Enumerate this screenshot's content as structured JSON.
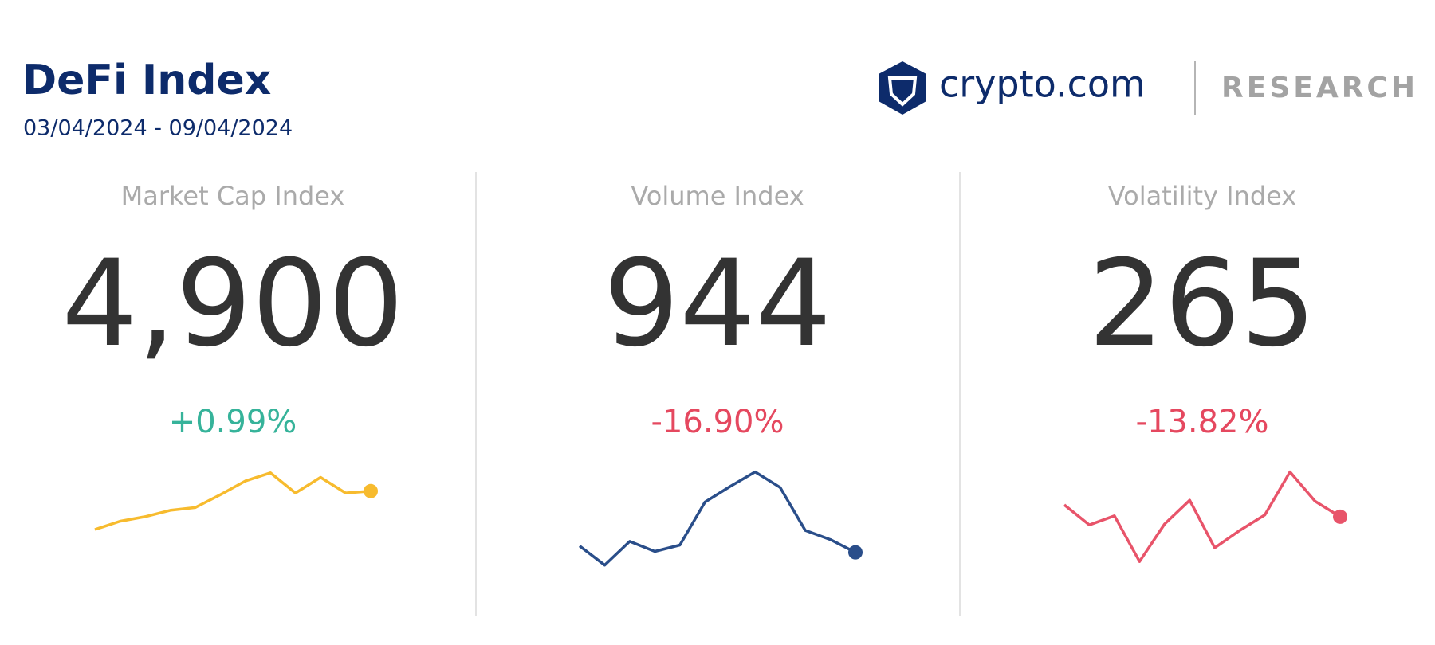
{
  "header": {
    "title": "DeFi Index",
    "date_range": "03/04/2024 - 09/04/2024"
  },
  "logo": {
    "brand": "crypto.com",
    "label": "RESEARCH"
  },
  "cards": [
    {
      "title": "Market Cap Index",
      "value": "4,900",
      "change": "+0.99%",
      "color": "#f7bb2e",
      "change_color": "#36b39a",
      "sparkline": [
        61,
        70,
        75,
        82,
        85,
        99,
        114,
        123,
        101,
        118,
        101,
        103
      ]
    },
    {
      "title": "Volume Index",
      "value": "944",
      "change": "-16.90%",
      "color": "#2a4e8a",
      "change_color": "#e5485f",
      "sparkline": [
        43,
        22,
        48,
        37,
        44,
        91,
        108,
        124,
        107,
        60,
        50,
        36
      ]
    },
    {
      "title": "Volatility Index",
      "value": "265",
      "change": "-13.82%",
      "color": "#e8546a",
      "change_color": "#e5485f",
      "sparkline": [
        88,
        66,
        76,
        26,
        67,
        93,
        41,
        60,
        77,
        124,
        92,
        75
      ]
    }
  ]
}
